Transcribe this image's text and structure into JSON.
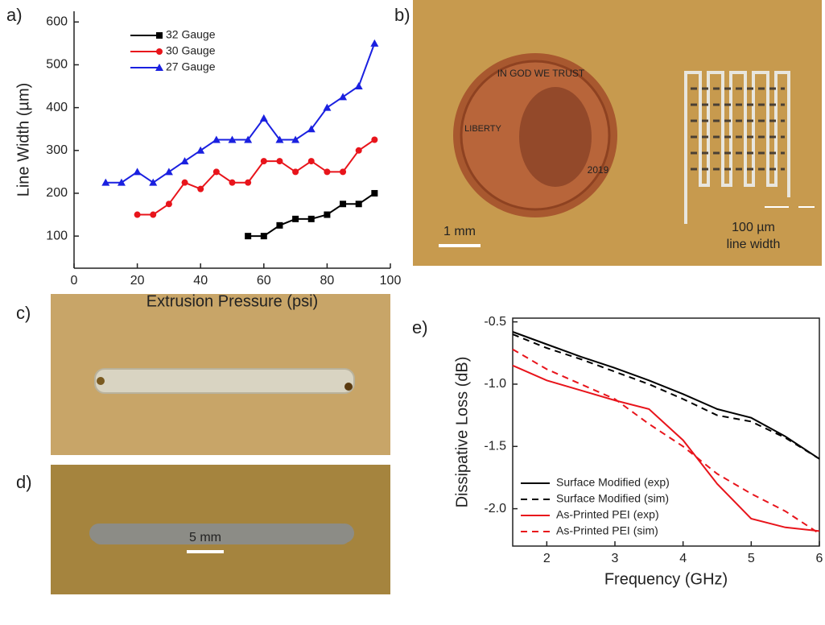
{
  "panels": [
    "a)",
    "b)",
    "c)",
    "d)",
    "e)"
  ],
  "photos": {
    "b": {
      "coin_texts": [
        "IN GOD WE TRUST",
        "LIBERTY",
        "2019"
      ],
      "scale": "1 mm",
      "feature": [
        "100 µm",
        "line width"
      ]
    },
    "d": {
      "scale": "5 mm"
    }
  },
  "chart_data": [
    {
      "type": "line",
      "xlabel": "Extrusion Pressure (psi)",
      "ylabel": "Line Width (µm)",
      "x": [
        10,
        15,
        20,
        25,
        30,
        35,
        40,
        45,
        50,
        55,
        60,
        65,
        70,
        75,
        80,
        85,
        90,
        95
      ],
      "xlim": [
        0,
        100
      ],
      "xticks": [
        0,
        20,
        40,
        60,
        80,
        100
      ],
      "ylim": [
        25,
        625
      ],
      "yticks": [
        100,
        200,
        300,
        400,
        500,
        600
      ],
      "legend": "upper left",
      "box": false,
      "series": [
        {
          "name": "32 Gauge",
          "color": "#000000",
          "marker": "square",
          "values": [
            null,
            null,
            null,
            null,
            null,
            null,
            null,
            null,
            null,
            100,
            100,
            125,
            140,
            140,
            150,
            175,
            175,
            200
          ]
        },
        {
          "name": "30 Gauge",
          "color": "#e8141b",
          "marker": "circle",
          "values": [
            null,
            null,
            150,
            150,
            175,
            225,
            210,
            250,
            225,
            225,
            275,
            275,
            250,
            275,
            250,
            250,
            300,
            325
          ]
        },
        {
          "name": "27 Gauge",
          "color": "#1a20e0",
          "marker": "triangle",
          "values": [
            225,
            225,
            250,
            225,
            250,
            275,
            300,
            325,
            325,
            325,
            375,
            325,
            325,
            350,
            400,
            425,
            450,
            550
          ]
        }
      ]
    },
    {
      "type": "line",
      "xlabel": "Frequency (GHz)",
      "ylabel": "Dissipative Loss (dB)",
      "x": [
        1.5,
        2,
        2.5,
        3,
        3.5,
        4,
        4.5,
        5,
        5.5,
        6
      ],
      "xlim": [
        1.5,
        6
      ],
      "xticks": [
        2,
        3,
        4,
        5,
        6
      ],
      "ylim": [
        -2.3,
        -0.47
      ],
      "yticks": [
        {
          "value": -0.5,
          "label": "-0.5"
        },
        {
          "value": -1,
          "label": "-1.0"
        },
        {
          "value": -1.5,
          "label": "-1.5"
        },
        {
          "value": -2,
          "label": "-2.0"
        }
      ],
      "legend": "lower left",
      "box": true,
      "series": [
        {
          "name": "Surface Modified (exp)",
          "color": "#000000",
          "dash": false,
          "values": [
            -0.58,
            -0.68,
            -0.78,
            -0.87,
            -0.97,
            -1.08,
            -1.2,
            -1.27,
            -1.42,
            -1.6
          ]
        },
        {
          "name": "Surface Modified (sim)",
          "color": "#000000",
          "dash": true,
          "values": [
            -0.6,
            -0.71,
            -0.8,
            -0.9,
            -1.0,
            -1.12,
            -1.25,
            -1.3,
            -1.43,
            -1.6
          ]
        },
        {
          "name": "As-Printed PEI (exp)",
          "color": "#e8141b",
          "dash": false,
          "values": [
            -0.85,
            -0.97,
            -1.05,
            -1.13,
            -1.2,
            -1.45,
            -1.8,
            -2.08,
            -2.15,
            -2.18
          ]
        },
        {
          "name": "As-Printed PEI (sim)",
          "color": "#e8141b",
          "dash": true,
          "values": [
            -0.72,
            -0.88,
            -1.0,
            -1.12,
            -1.32,
            -1.5,
            -1.72,
            -1.88,
            -2.02,
            -2.2
          ]
        }
      ]
    }
  ]
}
